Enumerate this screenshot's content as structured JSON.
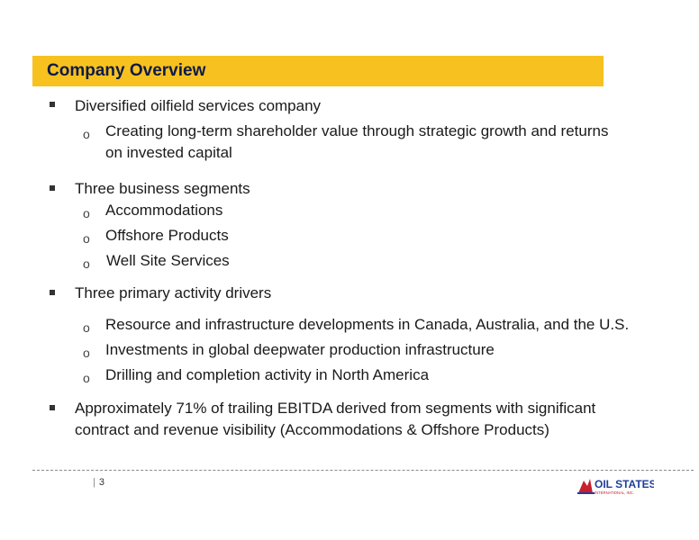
{
  "header": {
    "title": "Company Overview"
  },
  "bullets": [
    {
      "text": "Diversified oilfield services company",
      "sub": [
        {
          "line1": "Creating long-term shareholder value through strategic growth and returns",
          "line2": "on invested capital"
        }
      ]
    },
    {
      "text": "Three business segments",
      "sub": [
        {
          "line1": "Accommodations"
        },
        {
          "line1": "Offshore Products"
        },
        {
          "line1": "Well Site Services"
        }
      ]
    },
    {
      "text": "Three primary activity drivers",
      "sub": [
        {
          "line1": "Resource and infrastructure developments in Canada, Australia, and the U.S."
        },
        {
          "line1": "Investments in global deepwater production infrastructure"
        },
        {
          "line1": "Drilling and completion activity in North America"
        }
      ]
    },
    {
      "line1": "Approximately 71% of trailing EBITDA derived from segments with significant",
      "line2": "contract and revenue visibility (Accommodations & Offshore Products)"
    }
  ],
  "footer": {
    "page_number": "3",
    "separator": "|",
    "logo_text": "OIL STATES",
    "logo_subtext": "INTERNATIONAL, INC."
  },
  "colors": {
    "title_bar": "#f7c21f",
    "title_text": "#0e1a4a",
    "logo_red": "#c8202f",
    "logo_blue": "#1f3f99"
  }
}
